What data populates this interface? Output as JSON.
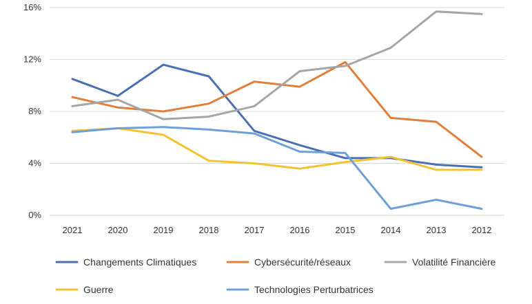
{
  "chart_data": {
    "type": "line",
    "title": "",
    "xlabel": "",
    "ylabel": "",
    "categories": [
      "2021",
      "2020",
      "2019",
      "2018",
      "2017",
      "2016",
      "2015",
      "2014",
      "2013",
      "2012"
    ],
    "ylim": [
      0,
      16
    ],
    "yticks": [
      0,
      4,
      8,
      12,
      16
    ],
    "ytick_labels": [
      "0%",
      "4%",
      "8%",
      "12%",
      "16%"
    ],
    "grid": true,
    "legend_position": "bottom",
    "series": [
      {
        "name": "Changements Climatiques",
        "color": "#4a6fb5",
        "values": [
          10.5,
          9.2,
          11.6,
          10.7,
          6.5,
          5.4,
          4.4,
          4.4,
          3.9,
          3.7
        ]
      },
      {
        "name": "Cybersécurité/réseaux",
        "color": "#e07f3a",
        "values": [
          9.1,
          8.3,
          8.0,
          8.6,
          10.3,
          9.9,
          11.8,
          7.5,
          7.2,
          4.5
        ]
      },
      {
        "name": "Volatilité Financière",
        "color": "#a5a5a5",
        "values": [
          8.4,
          8.9,
          7.4,
          7.6,
          8.4,
          11.1,
          11.5,
          12.9,
          15.7,
          15.5
        ]
      },
      {
        "name": "Guerre",
        "color": "#f2c230",
        "values": [
          6.5,
          6.7,
          6.2,
          4.2,
          4.0,
          3.6,
          4.1,
          4.5,
          3.5,
          3.5
        ]
      },
      {
        "name": "Technologies Perturbatrices",
        "color": "#6da0d6",
        "values": [
          6.4,
          6.7,
          6.8,
          6.6,
          6.3,
          4.9,
          4.8,
          0.5,
          1.2,
          0.5
        ]
      }
    ]
  }
}
